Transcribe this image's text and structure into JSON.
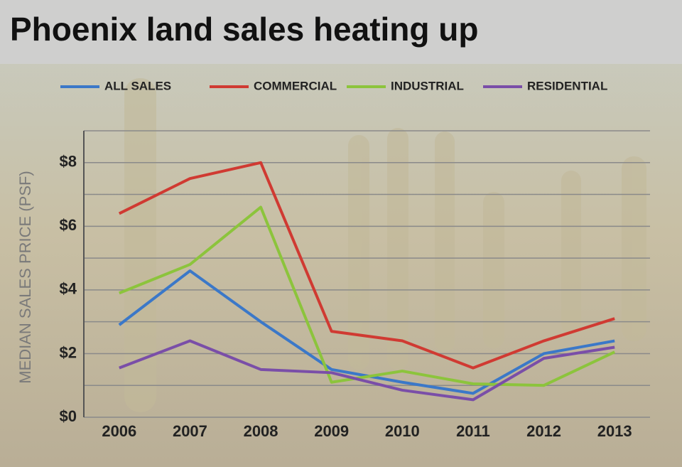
{
  "chart_data": {
    "type": "line",
    "title": "Phoenix land sales heating up",
    "y_label": "MEDIAN SALES PRICE (PSF)",
    "categories": [
      "2006",
      "2007",
      "2008",
      "2009",
      "2010",
      "2011",
      "2012",
      "2013"
    ],
    "series": [
      {
        "name": "ALL SALES",
        "color": "#3b78c8",
        "values": [
          2.9,
          4.6,
          3.0,
          1.5,
          1.1,
          0.75,
          2.0,
          2.4
        ]
      },
      {
        "name": "COMMERCIAL",
        "color": "#d03a32",
        "values": [
          6.4,
          7.5,
          8.0,
          2.7,
          2.4,
          1.55,
          2.4,
          3.1
        ]
      },
      {
        "name": "INDUSTRIAL",
        "color": "#8cc43c",
        "values": [
          3.9,
          4.8,
          6.6,
          1.1,
          1.45,
          1.05,
          1.0,
          2.05
        ]
      },
      {
        "name": "RESIDENTIAL",
        "color": "#7a4ea8",
        "values": [
          1.55,
          2.4,
          1.5,
          1.4,
          0.85,
          0.55,
          1.85,
          2.2
        ]
      }
    ],
    "ylim": [
      0,
      9
    ],
    "yticks": [
      {
        "value": 0,
        "label": "$0"
      },
      {
        "value": 2,
        "label": "$2"
      },
      {
        "value": 4,
        "label": "$4"
      },
      {
        "value": 6,
        "label": "$6"
      },
      {
        "value": 8,
        "label": "$8"
      }
    ],
    "minor_yticks": [
      1,
      3,
      5,
      7,
      9
    ],
    "grid": true
  }
}
